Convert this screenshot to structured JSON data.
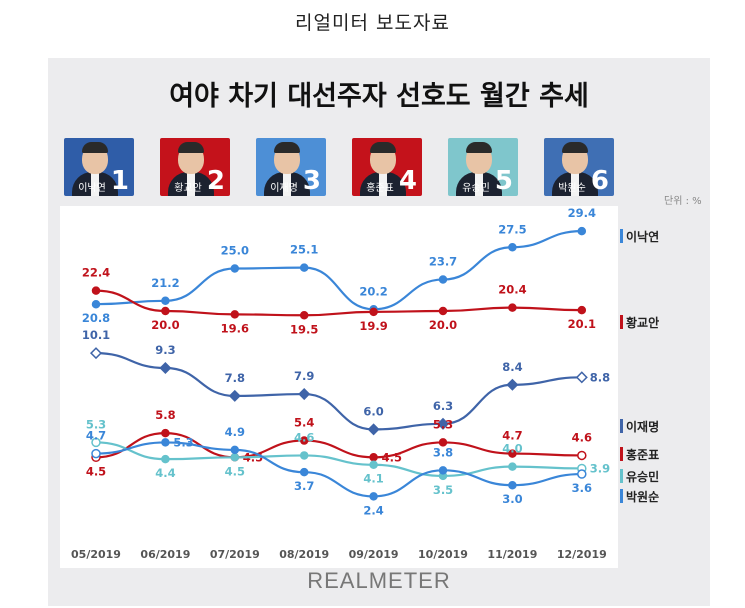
{
  "header": {
    "title": "리얼미터 보도자료"
  },
  "chart_title": "여야 차기 대선주자 선호도 월간 추세",
  "unit": "단위 : %",
  "logo": "REALMETER",
  "candidates": [
    {
      "name": "이낙연",
      "number": "1",
      "card_color": "#2f5da8"
    },
    {
      "name": "황교안",
      "number": "2",
      "card_color": "#c4121b"
    },
    {
      "name": "이재명",
      "number": "3",
      "card_color": "#4d8fd6"
    },
    {
      "name": "홍준표",
      "number": "4",
      "card_color": "#c4121b"
    },
    {
      "name": "유승민",
      "number": "5",
      "card_color": "#7fc6cc"
    },
    {
      "name": "박원순",
      "number": "6",
      "card_color": "#3f6fb4"
    }
  ],
  "chart_data": {
    "type": "line",
    "title": "여야 차기 대선주자 선호도 월간 추세",
    "x": [
      "05/2019",
      "06/2019",
      "07/2019",
      "08/2019",
      "09/2019",
      "10/2019",
      "11/2019",
      "12/2019"
    ],
    "series": [
      {
        "name": "이낙연",
        "color": "#3a86d8",
        "values": [
          20.8,
          21.2,
          25.0,
          25.1,
          20.2,
          23.7,
          27.5,
          29.4
        ],
        "labels": [
          "20.8",
          "21.2",
          "25.0",
          "25.1",
          "20.2",
          "23.7",
          "27.5",
          "29.4"
        ]
      },
      {
        "name": "황교안",
        "color": "#c0121b",
        "values": [
          22.4,
          20.0,
          19.6,
          19.5,
          19.9,
          20.0,
          20.4,
          20.1
        ],
        "labels": [
          "22.4",
          "20.0",
          "19.6",
          "19.5",
          "19.9",
          "20.0",
          "20.4",
          "20.1"
        ]
      },
      {
        "name": "이재명",
        "color": "#3f64a8",
        "values": [
          10.1,
          9.3,
          7.8,
          7.9,
          6.0,
          6.3,
          8.4,
          8.8
        ],
        "labels": [
          "10.1",
          "9.3",
          "7.8",
          "7.9",
          "6.0",
          "6.3",
          "8.4",
          "8.8"
        ]
      },
      {
        "name": "홍준표",
        "color": "#c0121b",
        "values": [
          4.5,
          5.8,
          4.5,
          5.4,
          4.5,
          5.3,
          4.7,
          4.6
        ],
        "labels": [
          "4.5",
          "5.8",
          "4.5",
          "5.4",
          "4.5",
          "5.3",
          "4.7",
          "4.6"
        ]
      },
      {
        "name": "유승민",
        "color": "#65c2cc",
        "values": [
          5.3,
          4.4,
          4.5,
          4.6,
          4.1,
          3.5,
          4.0,
          3.9
        ],
        "labels": [
          "5.3",
          "4.4",
          "4.5",
          "4.6",
          "4.1",
          "3.5",
          "4.0",
          "3.9"
        ]
      },
      {
        "name": "박원순",
        "color": "#3a86d8",
        "values": [
          4.7,
          5.3,
          4.9,
          3.7,
          2.4,
          3.8,
          3.0,
          3.6
        ],
        "labels": [
          "4.7",
          "5.3",
          "4.9",
          "3.7",
          "2.4",
          "3.8",
          "3.0",
          "3.6"
        ]
      }
    ],
    "legend_position": "right",
    "grid": false
  }
}
